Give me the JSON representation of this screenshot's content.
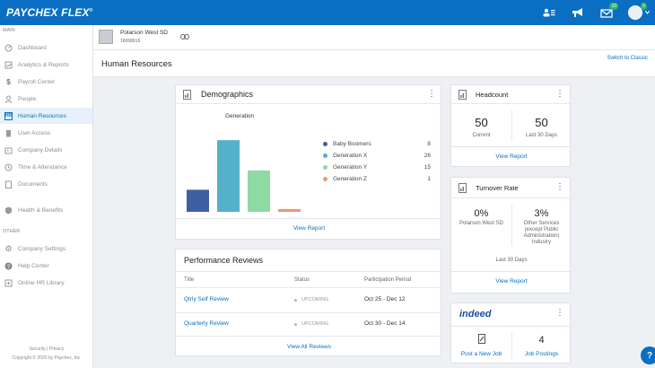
{
  "topbar": {
    "logo_text": "PAYCHEX FLEX",
    "logo_mark": "®",
    "icons": [
      "people-icon",
      "megaphone-icon",
      "mail-icon",
      "avatar-icon"
    ],
    "badges": {
      "mail": "10",
      "avatar": "5"
    }
  },
  "sidebar": {
    "section_main": "MAIN",
    "section_other": "OTHER",
    "items": [
      {
        "label": "Dashboard",
        "icon": "dashboard-icon"
      },
      {
        "label": "Analytics & Reports",
        "icon": "chart-icon"
      },
      {
        "label": "Payroll Center",
        "icon": "dollar-icon"
      },
      {
        "label": "People",
        "icon": "people-icon"
      },
      {
        "label": "Human Resources",
        "icon": "hr-icon"
      },
      {
        "label": "User Access",
        "icon": "building-icon"
      },
      {
        "label": "Company Details",
        "icon": "company-icon"
      },
      {
        "label": "Time & Attendance",
        "icon": "clock-icon"
      },
      {
        "label": "Documents",
        "icon": "document-icon"
      },
      {
        "label": "Health & Benefits",
        "icon": "shield-icon"
      },
      {
        "label": "Company Settings",
        "icon": "gear-icon"
      },
      {
        "label": "Help Center",
        "icon": "help-icon"
      },
      {
        "label": "Online HR Library",
        "icon": "library-icon"
      }
    ],
    "footer_links": "Security | Privacy",
    "footer_copyright": "Copyright © 2020 by Paychex, Inc."
  },
  "company": {
    "name": "Polarson West SD",
    "id": "16068616"
  },
  "page": {
    "title": "Human Resources",
    "switch_link": "Switch to Classic"
  },
  "demographics": {
    "title": "Demographics",
    "view_report": "View Report",
    "chart_data": {
      "type": "bar",
      "title": "Generation",
      "categories": [
        "Baby Boomers",
        "Generation X",
        "Generation Y",
        "Generation Z"
      ],
      "values": [
        8,
        26,
        15,
        1
      ],
      "colors": [
        "#3f5fa3",
        "#55b0c9",
        "#8fd9a3",
        "#e89a72"
      ],
      "ylim": [
        0,
        28
      ]
    }
  },
  "headcount": {
    "title": "Headcount",
    "current_value": "50",
    "current_label": "Current",
    "last30_value": "50",
    "last30_label": "Last 30 Days",
    "view_report": "View Report"
  },
  "turnover": {
    "title": "Turnover Rate",
    "left_value": "0%",
    "left_label": "Polarson West SD",
    "right_value": "3%",
    "right_label_1": "Other Services",
    "right_label_2": "(except Public",
    "right_label_3": "Administration)",
    "right_label_4": "Industry",
    "period": "Last 30 Days",
    "view_report": "View Report"
  },
  "performance": {
    "title": "Performance Reviews",
    "headers": [
      "Title",
      "Status",
      "Participation Period"
    ],
    "rows": [
      {
        "title": "Qtrly Self Review",
        "status": "UPCOMING",
        "period": "Oct 25 - Dec 12"
      },
      {
        "title": "Quarterly Review",
        "status": "UPCOMING",
        "period": "Oct 30 - Dec 14"
      }
    ],
    "view_all": "View All Reviews"
  },
  "indeed": {
    "logo": "indeed",
    "post_label": "Post a New Job",
    "postings_value": "4",
    "postings_label": "Job Postings"
  },
  "help": "?"
}
